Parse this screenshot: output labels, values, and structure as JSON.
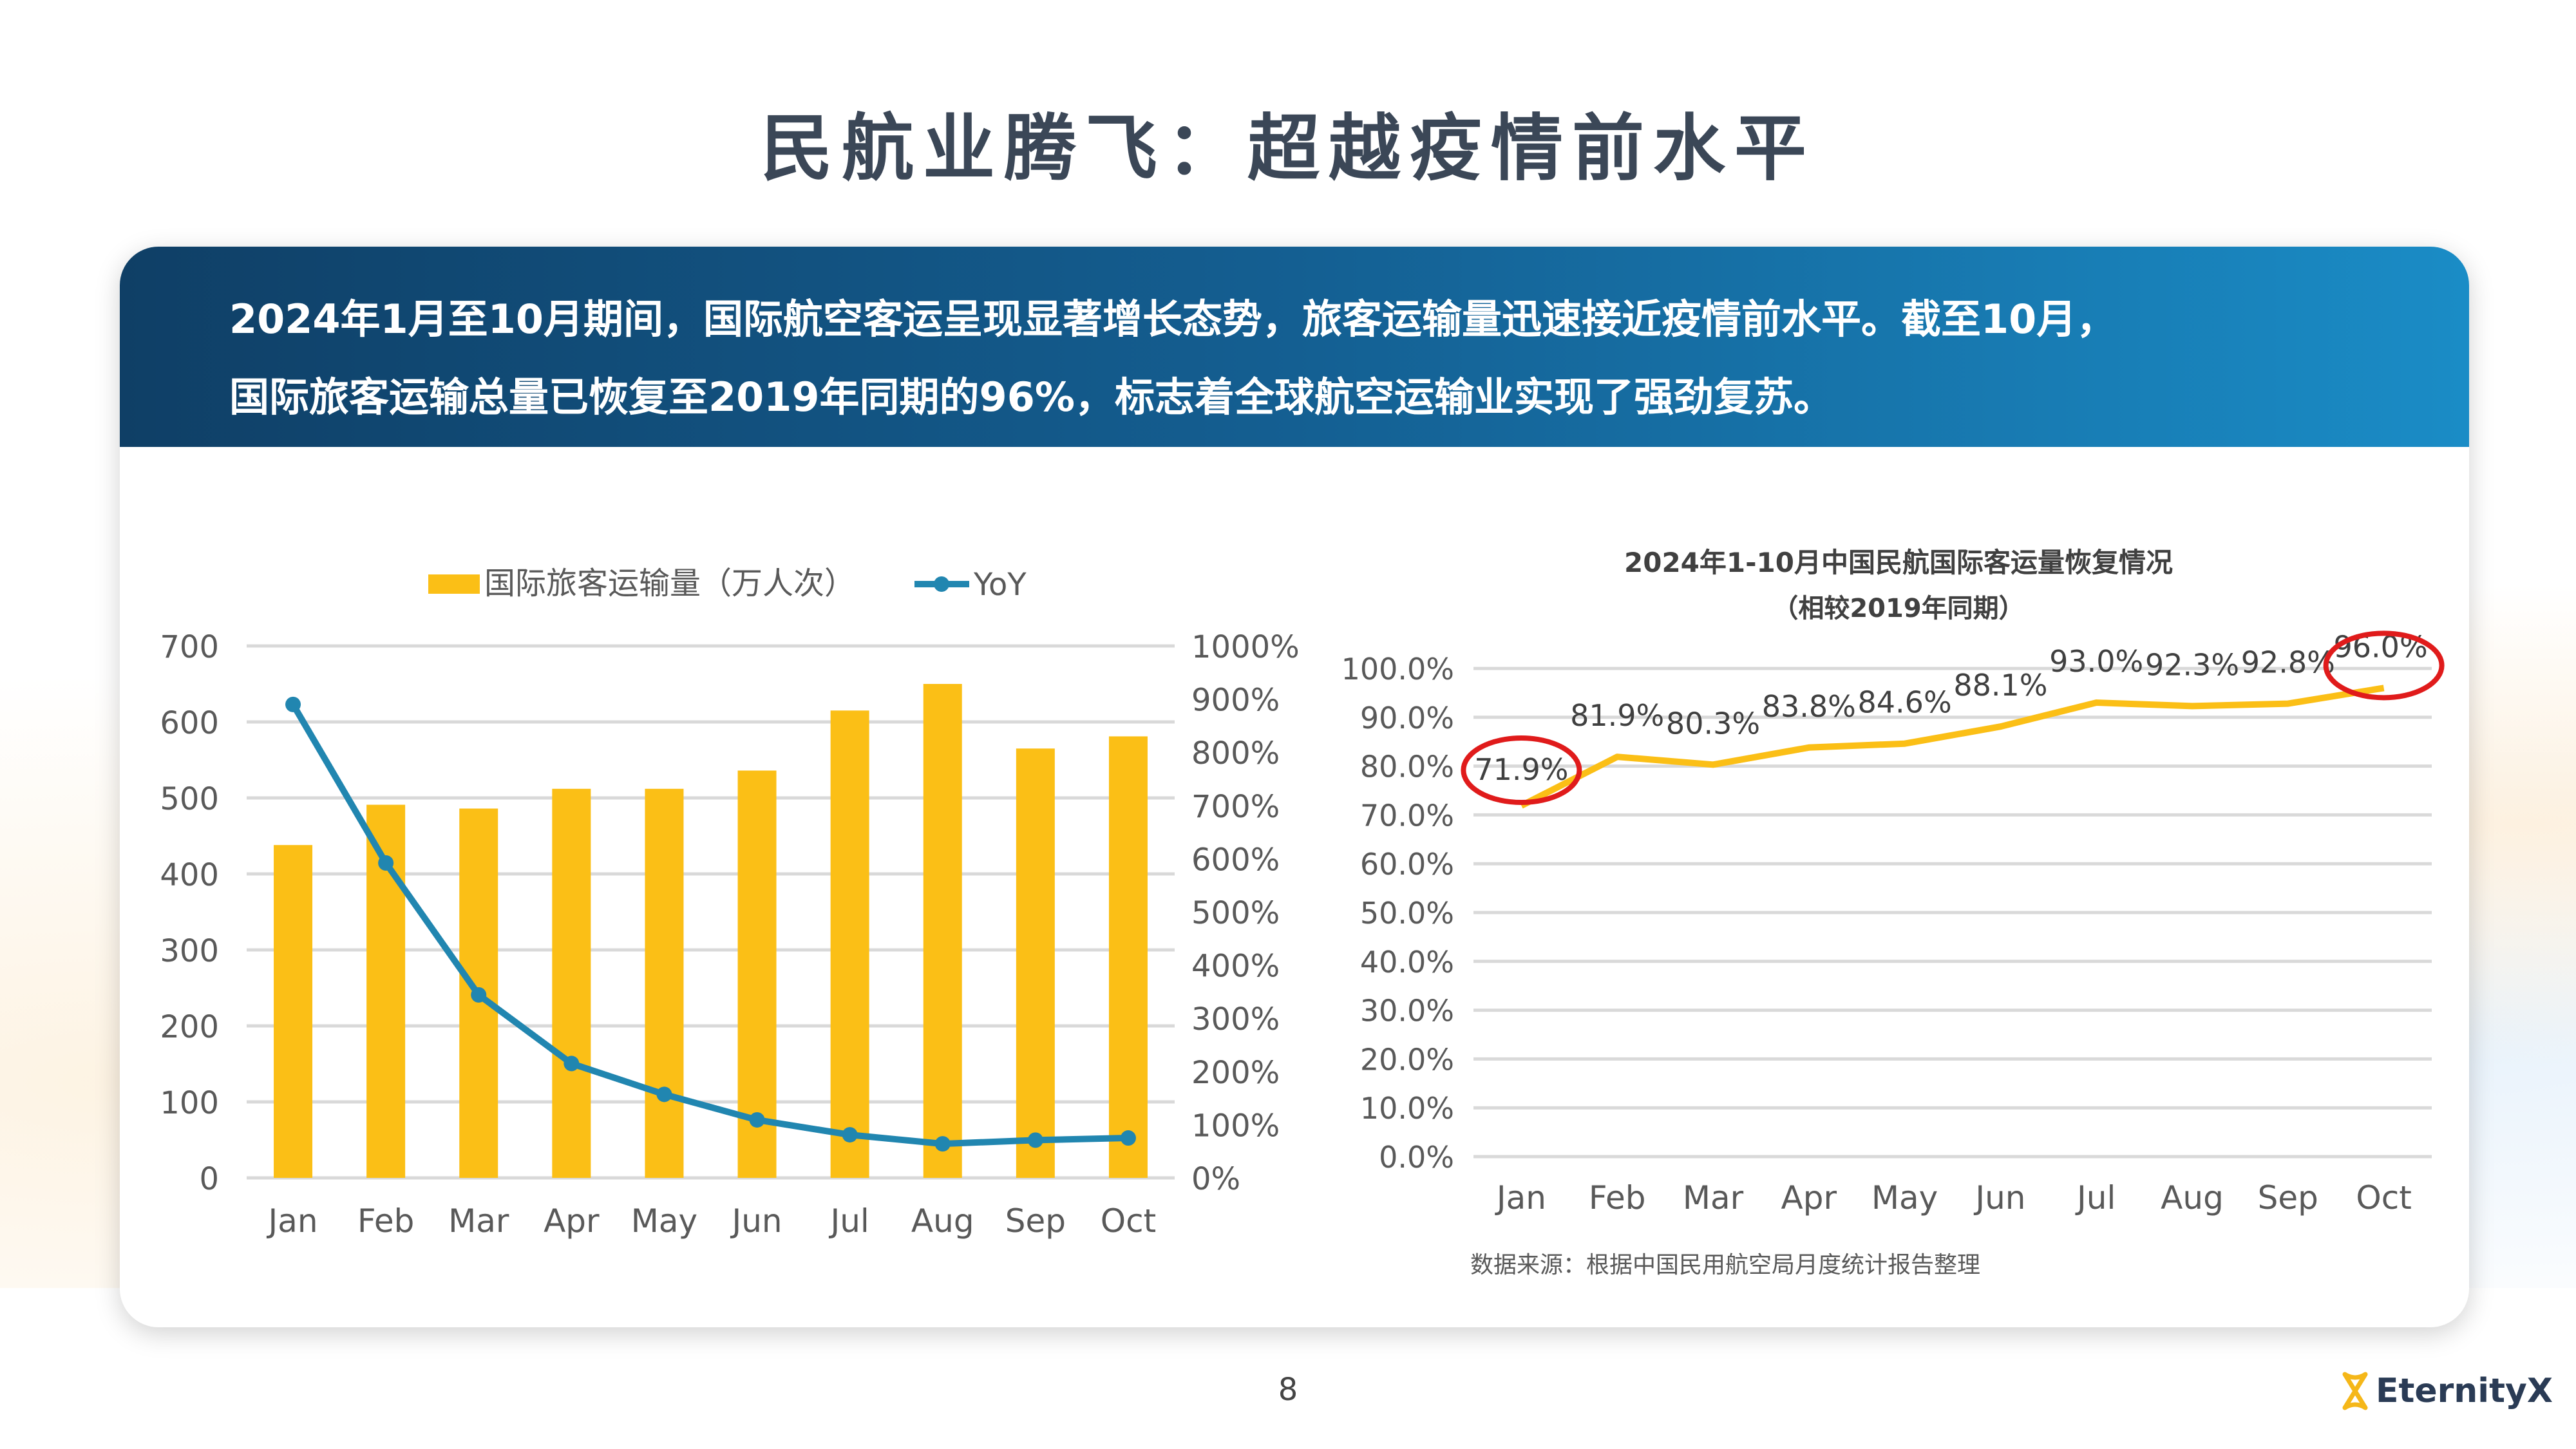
{
  "title": "民航业腾飞：超越疫情前水平",
  "summary": {
    "line1": "2024年1月至10月期间，国际航空客运呈现显著增长态势，旅客运输量迅速接近疫情前水平。截至10月，",
    "line2": "国际旅客运输总量已恢复至2019年同期的96%，标志着全球航空运输业实现了强劲复苏。"
  },
  "page_number": "8",
  "logo": {
    "text": "EternityX",
    "icon": "hourglass-icon",
    "icon_color": "#f5b719",
    "text_color": "#2a3b55"
  },
  "chart_data": [
    {
      "type": "bar+line",
      "categories": [
        "Jan",
        "Feb",
        "Mar",
        "Apr",
        "May",
        "Jun",
        "Jul",
        "Aug",
        "Sep",
        "Oct"
      ],
      "series": [
        {
          "name": "国际旅客运输量（万人次）",
          "type": "bar",
          "axis": "left",
          "color": "#fbbf16",
          "values": [
            438,
            491,
            486,
            512,
            512,
            536,
            615,
            650,
            565,
            581
          ]
        },
        {
          "name": "YoY",
          "type": "line",
          "axis": "right",
          "color": "#2186b0",
          "values": [
            890,
            592,
            344,
            215,
            157,
            109,
            81,
            64,
            71,
            75
          ]
        }
      ],
      "y_left": {
        "range": [
          0,
          700
        ],
        "ticks": [
          "0",
          "100",
          "200",
          "300",
          "400",
          "500",
          "600",
          "700"
        ]
      },
      "y_right": {
        "range": [
          0,
          1000
        ],
        "ticks": [
          "0%",
          "100%",
          "200%",
          "300%",
          "400%",
          "500%",
          "600%",
          "700%",
          "800%",
          "900%",
          "1000%"
        ]
      },
      "grid": true,
      "legend": "top"
    },
    {
      "type": "line",
      "title": "2024年1-10月中国民航国际客运量恢复情况",
      "subtitle": "（相较2019年同期）",
      "categories": [
        "Jan",
        "Feb",
        "Mar",
        "Apr",
        "May",
        "Jun",
        "Jul",
        "Aug",
        "Sep",
        "Oct"
      ],
      "values": [
        71.9,
        81.9,
        80.3,
        83.8,
        84.6,
        88.1,
        93.0,
        92.3,
        92.8,
        96.0
      ],
      "labels": [
        "71.9%",
        "81.9%",
        "80.3%",
        "83.8%",
        "84.6%",
        "88.1%",
        "93.0%",
        "92.3%",
        "92.8%",
        "96.0%"
      ],
      "color": "#fbbf16",
      "highlight_color": "#e01b1b",
      "highlighted": [
        "Jan",
        "Oct"
      ],
      "ylim": [
        0,
        100
      ],
      "ticks": [
        "0.0%",
        "10.0%",
        "20.0%",
        "30.0%",
        "40.0%",
        "50.0%",
        "60.0%",
        "70.0%",
        "80.0%",
        "90.0%",
        "100.0%"
      ],
      "grid": true,
      "source": "数据来源：根据中国民用航空局月度统计报告整理"
    }
  ]
}
